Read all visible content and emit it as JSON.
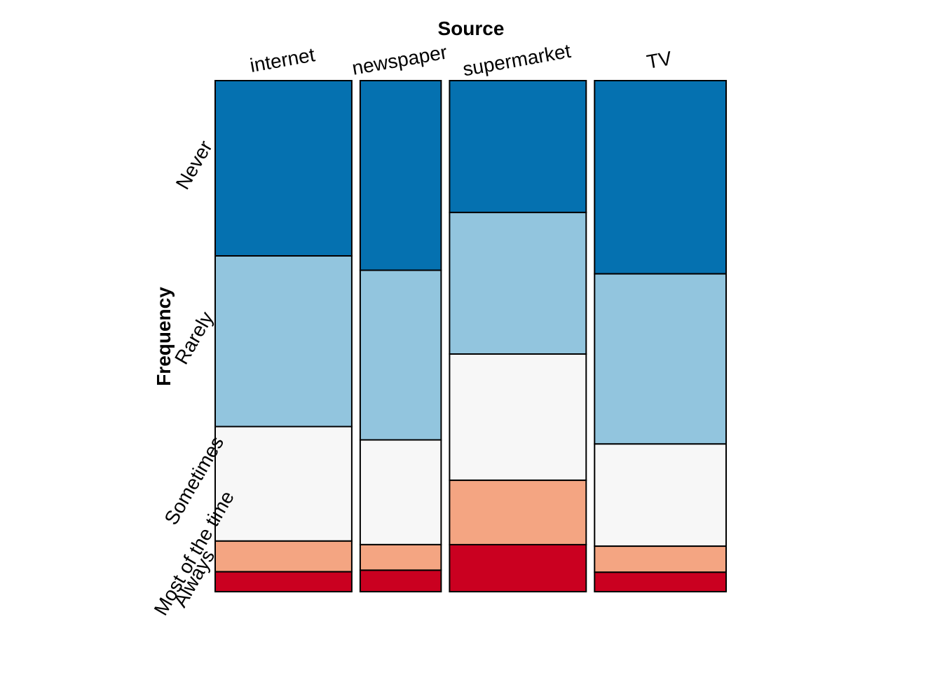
{
  "chart_data": {
    "type": "mosaic",
    "xlabel": "Source",
    "ylabel": "Frequency",
    "categories": [
      "internet",
      "newspaper",
      "supermarket",
      "TV"
    ],
    "column_weights": [
      0.27,
      0.16,
      0.27,
      0.26
    ],
    "levels": [
      {
        "name": "Never",
        "color": "#0571B0"
      },
      {
        "name": "Rarely",
        "color": "#92C5DE"
      },
      {
        "name": "Sometimes",
        "color": "#F7F7F7"
      },
      {
        "name": "Most of the time",
        "color": "#F4A582"
      },
      {
        "name": "Always",
        "color": "#CA0020"
      }
    ],
    "proportions": [
      [
        0.343,
        0.334,
        0.224,
        0.06,
        0.039
      ],
      [
        0.371,
        0.332,
        0.205,
        0.05,
        0.042
      ],
      [
        0.258,
        0.277,
        0.247,
        0.126,
        0.092
      ],
      [
        0.378,
        0.333,
        0.2,
        0.051,
        0.038
      ]
    ],
    "legend": "none",
    "grid": false
  }
}
